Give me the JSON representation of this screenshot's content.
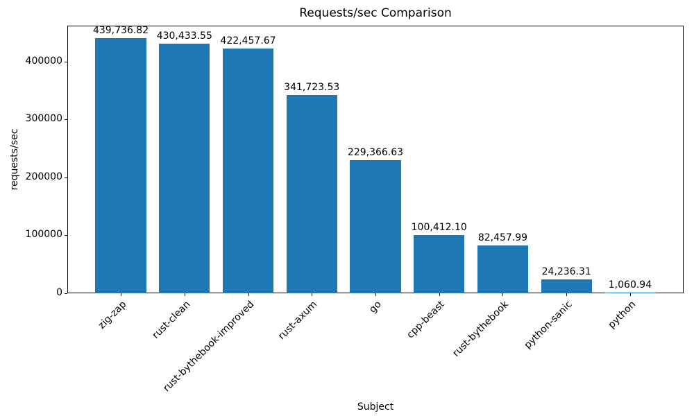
{
  "chart_data": {
    "type": "bar",
    "title": "Requests/sec Comparison",
    "xlabel": "Subject",
    "ylabel": "requests/sec",
    "categories": [
      "zig-zap",
      "rust-clean",
      "rust-bythebook-improved",
      "rust-axum",
      "go",
      "cpp-beast",
      "rust-bythebook",
      "python-sanic",
      "python"
    ],
    "values": [
      439736.82,
      430433.55,
      422457.67,
      341723.53,
      229366.63,
      100412.1,
      82457.99,
      24236.31,
      1060.94
    ],
    "value_labels": [
      "439,736.82",
      "430,433.55",
      "422,457.67",
      "341,723.53",
      "229,366.63",
      "100,412.10",
      "82,457.99",
      "24,236.31",
      "1,060.94"
    ],
    "yticks": [
      0,
      100000,
      200000,
      300000,
      400000
    ],
    "ytick_labels": [
      "0",
      "100000",
      "200000",
      "300000",
      "400000"
    ],
    "ylim": [
      0,
      461724
    ],
    "bar_color": "#1f77b4",
    "text_color": "#000000",
    "background_color": "#ffffff",
    "grid": false,
    "legend": null,
    "x_tick_rotation_deg": 45
  }
}
